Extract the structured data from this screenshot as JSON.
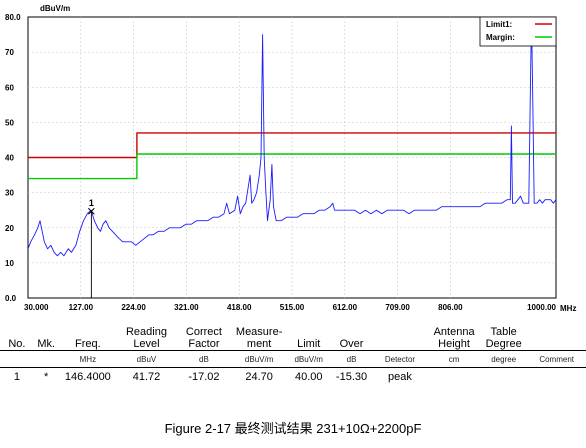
{
  "chart_data": {
    "type": "line",
    "ylabel": "dBuV/m",
    "xunit": "MHz",
    "xlim": [
      30,
      1000
    ],
    "ylim": [
      0,
      80
    ],
    "x_ticks": [
      "30.000",
      "127.00",
      "224.00",
      "321.00",
      "418.00",
      "515.00",
      "612.00",
      "709.00",
      "806.00",
      "1000.00"
    ],
    "x_tick_values": [
      30,
      127,
      224,
      321,
      418,
      515,
      612,
      709,
      806,
      1000
    ],
    "y_ticks": [
      "80.0",
      "70",
      "60",
      "50",
      "40",
      "30",
      "20",
      "10",
      "0.0"
    ],
    "y_tick_values": [
      80,
      70,
      60,
      50,
      40,
      30,
      20,
      10,
      0
    ],
    "grid": true,
    "legend_position": "top-right",
    "legend": [
      {
        "label": "Limit1:",
        "color": "#d00000"
      },
      {
        "label": "Margin:",
        "color": "#00cc00"
      }
    ],
    "series": [
      {
        "name": "Limit1:",
        "color": "#d00000",
        "points": [
          [
            30,
            40
          ],
          [
            230,
            40
          ],
          [
            230,
            47
          ],
          [
            1000,
            47
          ]
        ]
      },
      {
        "name": "Margin:",
        "color": "#00cc00",
        "points": [
          [
            30,
            34
          ],
          [
            230,
            34
          ],
          [
            230,
            41
          ],
          [
            1000,
            41
          ]
        ]
      },
      {
        "color": "#1a1aff",
        "points": [
          [
            30,
            14
          ],
          [
            35,
            16
          ],
          [
            42,
            18
          ],
          [
            48,
            20
          ],
          [
            52,
            22
          ],
          [
            56,
            19
          ],
          [
            60,
            16
          ],
          [
            66,
            14
          ],
          [
            72,
            15
          ],
          [
            78,
            13
          ],
          [
            84,
            12
          ],
          [
            90,
            13
          ],
          [
            96,
            12
          ],
          [
            104,
            14
          ],
          [
            110,
            13
          ],
          [
            118,
            15
          ],
          [
            125,
            19
          ],
          [
            132,
            22
          ],
          [
            139,
            24
          ],
          [
            146,
            25
          ],
          [
            152,
            22
          ],
          [
            158,
            20
          ],
          [
            163,
            19
          ],
          [
            168,
            21
          ],
          [
            173,
            22
          ],
          [
            179,
            20
          ],
          [
            185,
            19
          ],
          [
            191,
            18
          ],
          [
            197,
            17
          ],
          [
            204,
            16
          ],
          [
            212,
            16
          ],
          [
            220,
            16
          ],
          [
            228,
            15
          ],
          [
            236,
            16
          ],
          [
            244,
            17
          ],
          [
            252,
            18
          ],
          [
            260,
            18
          ],
          [
            270,
            19
          ],
          [
            280,
            19
          ],
          [
            290,
            20
          ],
          [
            300,
            20
          ],
          [
            310,
            20
          ],
          [
            320,
            21
          ],
          [
            330,
            21
          ],
          [
            340,
            22
          ],
          [
            350,
            22
          ],
          [
            360,
            22
          ],
          [
            370,
            23
          ],
          [
            380,
            23
          ],
          [
            390,
            24
          ],
          [
            395,
            27
          ],
          [
            400,
            24
          ],
          [
            410,
            25
          ],
          [
            415,
            29
          ],
          [
            420,
            24
          ],
          [
            425,
            26
          ],
          [
            430,
            27
          ],
          [
            438,
            35
          ],
          [
            441,
            27
          ],
          [
            445,
            28
          ],
          [
            450,
            30
          ],
          [
            455,
            35
          ],
          [
            458,
            40
          ],
          [
            461,
            75
          ],
          [
            464,
            40
          ],
          [
            467,
            30
          ],
          [
            470,
            22
          ],
          [
            475,
            28
          ],
          [
            478,
            38
          ],
          [
            481,
            26
          ],
          [
            486,
            22
          ],
          [
            495,
            22
          ],
          [
            505,
            23
          ],
          [
            515,
            23
          ],
          [
            525,
            23
          ],
          [
            535,
            24
          ],
          [
            545,
            24
          ],
          [
            555,
            24
          ],
          [
            565,
            25
          ],
          [
            575,
            25
          ],
          [
            585,
            26
          ],
          [
            590,
            27
          ],
          [
            593,
            25
          ],
          [
            600,
            25
          ],
          [
            610,
            25
          ],
          [
            620,
            25
          ],
          [
            630,
            25
          ],
          [
            640,
            24
          ],
          [
            650,
            25
          ],
          [
            660,
            24
          ],
          [
            670,
            25
          ],
          [
            680,
            24
          ],
          [
            690,
            25
          ],
          [
            700,
            25
          ],
          [
            710,
            25
          ],
          [
            720,
            25
          ],
          [
            730,
            24
          ],
          [
            740,
            25
          ],
          [
            750,
            25
          ],
          [
            760,
            25
          ],
          [
            770,
            25
          ],
          [
            780,
            25
          ],
          [
            790,
            26
          ],
          [
            800,
            26
          ],
          [
            810,
            26
          ],
          [
            820,
            26
          ],
          [
            830,
            26
          ],
          [
            840,
            26
          ],
          [
            850,
            26
          ],
          [
            860,
            26
          ],
          [
            870,
            27
          ],
          [
            880,
            27
          ],
          [
            890,
            27
          ],
          [
            900,
            27
          ],
          [
            910,
            28
          ],
          [
            916,
            28
          ],
          [
            918,
            49
          ],
          [
            920,
            27
          ],
          [
            925,
            27
          ],
          [
            930,
            28
          ],
          [
            935,
            29
          ],
          [
            940,
            27
          ],
          [
            945,
            27
          ],
          [
            950,
            27
          ],
          [
            953,
            60
          ],
          [
            955,
            80
          ],
          [
            957,
            60
          ],
          [
            960,
            27
          ],
          [
            965,
            27
          ],
          [
            970,
            28
          ],
          [
            975,
            27
          ],
          [
            980,
            28
          ],
          [
            985,
            28
          ],
          [
            990,
            28
          ],
          [
            995,
            27
          ],
          [
            1000,
            28
          ]
        ]
      }
    ],
    "markers": [
      {
        "label": "1",
        "x": 146.4,
        "y": 24.7
      }
    ]
  },
  "table": {
    "headers": [
      {
        "key": "no",
        "text": "No."
      },
      {
        "key": "mk",
        "text": "Mk."
      },
      {
        "key": "freq",
        "text": "Freq."
      },
      {
        "key": "reading",
        "text": "Reading Level"
      },
      {
        "key": "correct",
        "text": "Correct Factor"
      },
      {
        "key": "measure",
        "text": "Measure- ment"
      },
      {
        "key": "limit",
        "text": "Limit"
      },
      {
        "key": "over",
        "text": "Over"
      },
      {
        "key": "detector",
        "text": ""
      },
      {
        "key": "antenna",
        "text": "Antenna Height"
      },
      {
        "key": "table_deg",
        "text": "Table Degree"
      },
      {
        "key": "comment",
        "text": ""
      }
    ],
    "units": [
      "",
      "",
      "MHz",
      "dBuV",
      "dB",
      "dBuV/m",
      "dBuV/m",
      "dB",
      "Detector",
      "cm",
      "degree",
      "Comment"
    ],
    "rows": [
      [
        "1",
        "*",
        "146.4000",
        "41.72",
        "-17.02",
        "24.70",
        "40.00",
        "-15.30",
        "peak",
        "",
        "",
        ""
      ]
    ]
  },
  "caption": "Figure 2-17  最终测试结果 231+10Ω+2200pF"
}
